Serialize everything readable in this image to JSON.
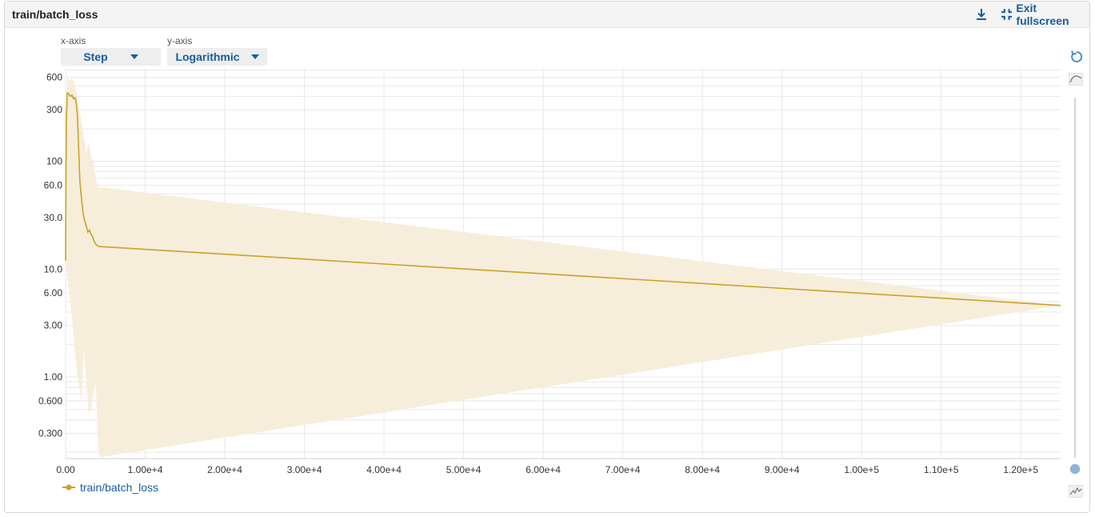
{
  "header": {
    "title": "train/batch_loss",
    "exit_fullscreen_label": "Exit fullscreen"
  },
  "controls": {
    "x_axis_label": "x-axis",
    "x_axis_value": "Step",
    "y_axis_label": "y-axis",
    "y_axis_value": "Logarithmic"
  },
  "legend": {
    "label": "train/batch_loss"
  },
  "colors": {
    "series": "#c9a227",
    "band": "#f6eedb",
    "accent": "#1a5c9e"
  },
  "icons": [
    "download-icon",
    "exit-fullscreen-icon",
    "reset-zoom-icon",
    "smooth-curve-icon",
    "raw-data-icon",
    "slider-knob"
  ],
  "chart_data": {
    "type": "line",
    "title": "",
    "xlabel": "",
    "ylabel": "",
    "y_scale": "log",
    "xlim": [
      0,
      125000
    ],
    "ylim": [
      0.175,
      720
    ],
    "grid": true,
    "x_ticks": [
      0,
      10000,
      20000,
      30000,
      40000,
      50000,
      60000,
      70000,
      80000,
      90000,
      100000,
      110000,
      120000
    ],
    "x_tick_labels": [
      "0.00",
      "1.00e+4",
      "2.00e+4",
      "3.00e+4",
      "4.00e+4",
      "5.00e+4",
      "6.00e+4",
      "7.00e+4",
      "8.00e+4",
      "9.00e+4",
      "1.00e+5",
      "1.10e+5",
      "1.20e+5"
    ],
    "y_ticks": [
      600,
      300,
      100,
      60,
      30,
      10,
      6,
      3,
      1,
      0.6,
      0.3
    ],
    "y_tick_labels": [
      "600",
      "300",
      "100",
      "60.0",
      "30.0",
      "10.0",
      "6.00",
      "3.00",
      "1.00",
      "0.600",
      "0.300"
    ],
    "series": [
      {
        "name": "train/batch_loss",
        "x": [
          0,
          80,
          200,
          400,
          600,
          800,
          1000,
          1200,
          1300,
          1400,
          1500,
          1600,
          1700,
          1800,
          2000,
          2200,
          2400,
          2600,
          2800,
          3000,
          3200,
          3400,
          3600,
          3800,
          4000,
          4200,
          125000
        ],
        "y": [
          12,
          200,
          430,
          420,
          400,
          410,
          380,
          390,
          360,
          320,
          250,
          160,
          100,
          65,
          45,
          33,
          28,
          25,
          22,
          23,
          21,
          20,
          18,
          17,
          16.5,
          16.2,
          4.6
        ]
      }
    ],
    "band": {
      "upper": {
        "x": [
          0,
          200,
          500,
          800,
          1100,
          1400,
          1700,
          2000,
          2300,
          2600,
          2900,
          3200,
          3500,
          3800,
          4000,
          125000
        ],
        "y": [
          12,
          620,
          560,
          600,
          520,
          420,
          300,
          230,
          170,
          120,
          150,
          110,
          100,
          70,
          58,
          4.6
        ]
      },
      "lower": {
        "x": [
          0,
          300,
          800,
          1200,
          1600,
          2000,
          2300,
          2600,
          2900,
          3200,
          3500,
          3800,
          4100,
          4300,
          125000
        ],
        "y": [
          12,
          8,
          3.5,
          1.6,
          0.9,
          0.6,
          1.8,
          0.9,
          0.45,
          0.5,
          0.7,
          0.9,
          0.22,
          0.18,
          4.6
        ]
      }
    }
  }
}
